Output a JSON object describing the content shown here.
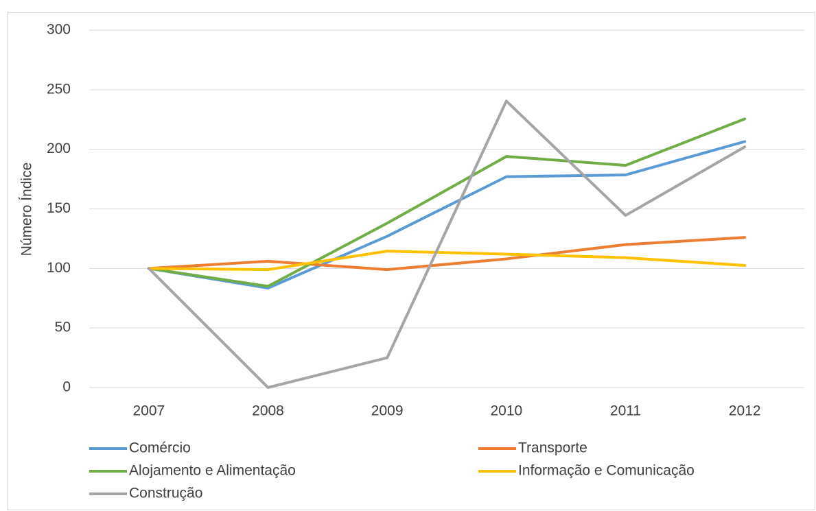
{
  "chart_data": {
    "type": "line",
    "y_label": "Número Índice",
    "categories": [
      "2007",
      "2008",
      "2009",
      "2010",
      "2011",
      "2012"
    ],
    "series": [
      {
        "name": "Comércio",
        "color": "#5b9bd5",
        "values": [
          100,
          83.5,
          127,
          177,
          178.5,
          206.5
        ]
      },
      {
        "name": "Transporte",
        "color": "#ed7d31",
        "values": [
          100,
          106,
          99,
          108,
          120,
          126
        ]
      },
      {
        "name": "Alojamento e Alimentação",
        "color": "#70ad47",
        "values": [
          100,
          85,
          138,
          194,
          186.5,
          225.5
        ]
      },
      {
        "name": "Informação e Comunicação",
        "color": "#ffc000",
        "values": [
          100,
          99,
          114.5,
          112,
          109,
          102.5
        ]
      },
      {
        "name": "Construção",
        "color": "#a5a5a5",
        "values": [
          100,
          0,
          25,
          240.5,
          144.5,
          202
        ]
      }
    ],
    "ylim": [
      0,
      300
    ],
    "yticks": [
      0,
      50,
      100,
      150,
      200,
      250,
      300
    ],
    "grid": true
  }
}
